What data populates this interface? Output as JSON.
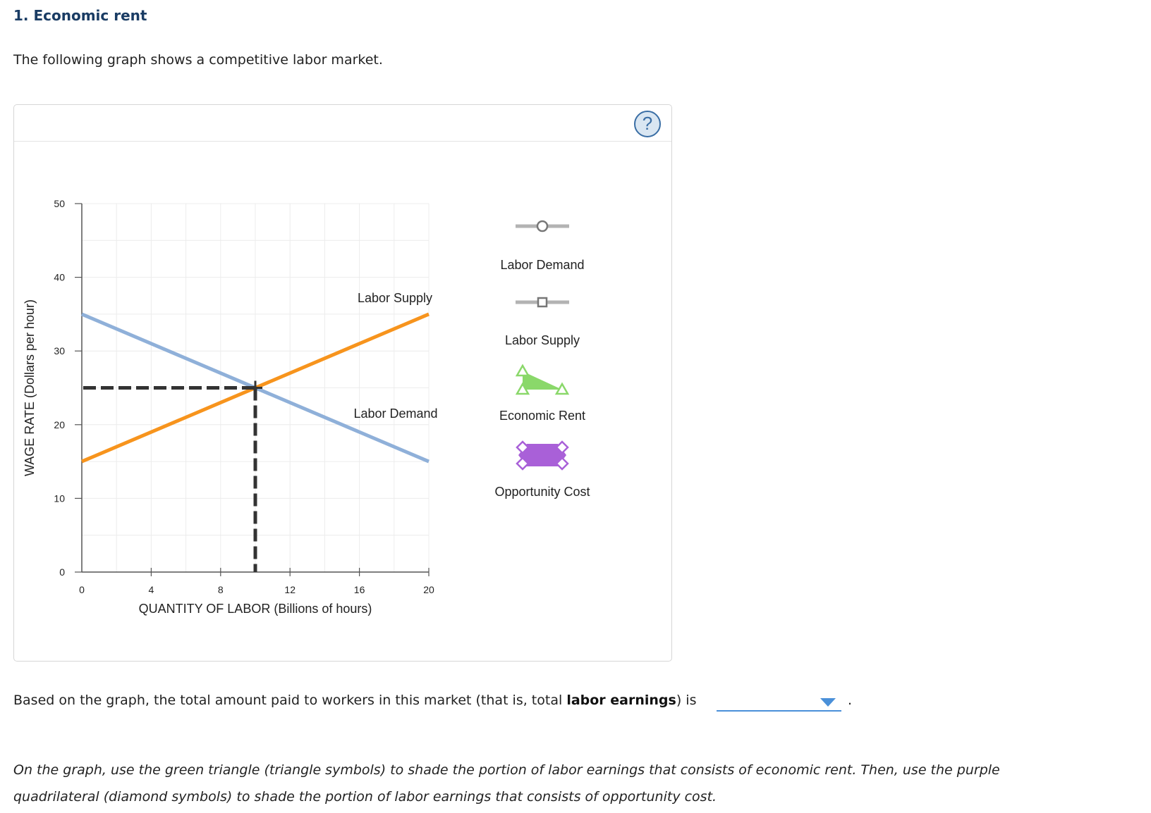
{
  "question": {
    "title": "1. Economic rent",
    "intro": "The following graph shows a competitive labor market."
  },
  "help_icon": {
    "glyph": "?",
    "icon": "question-mark-icon"
  },
  "chart_data": {
    "type": "line",
    "xlabel": "QUANTITY OF LABOR (Billions of hours)",
    "ylabel": "WAGE RATE (Dollars per hour)",
    "xlim": [
      0,
      20
    ],
    "ylim": [
      0,
      50
    ],
    "x_ticks": [
      0,
      4,
      8,
      12,
      16,
      20
    ],
    "y_ticks": [
      0,
      10,
      20,
      30,
      40,
      50
    ],
    "grid": true,
    "series": [
      {
        "name": "Labor Demand",
        "color": "#8fb0d9",
        "points": [
          [
            0,
            35
          ],
          [
            20,
            15
          ]
        ]
      },
      {
        "name": "Labor Supply",
        "color": "#f7941d",
        "points": [
          [
            0,
            15
          ],
          [
            20,
            35
          ]
        ]
      }
    ],
    "equilibrium": {
      "x": 10,
      "y": 25
    }
  },
  "palette": {
    "title": "#1a3c64",
    "legend_line": "#b3b3b3",
    "economic_rent": "#8ad86a",
    "opportunity_cost": "#a960d8",
    "dropdown": "#4a90d9",
    "guide_dashes": "#333333"
  },
  "legend": {
    "items": [
      {
        "label": "Labor Demand",
        "icon": "circle-marker-icon"
      },
      {
        "label": "Labor Supply",
        "icon": "square-marker-icon"
      },
      {
        "label": "Economic Rent",
        "icon": "green-triangle-tool-icon"
      },
      {
        "label": "Opportunity Cost",
        "icon": "purple-quadrilateral-tool-icon"
      }
    ]
  },
  "answer": {
    "prefix": "Based on the graph, the total amount paid to workers in this market (that is, total ",
    "bold": "labor earnings",
    "suffix": ") is",
    "dropdown_value": "",
    "period": "."
  },
  "instructions": "On the graph, use the green triangle (triangle symbols) to shade the portion of labor earnings that consists of economic rent. Then, use the purple quadrilateral (diamond symbols) to shade the portion of labor earnings that consists of opportunity cost."
}
